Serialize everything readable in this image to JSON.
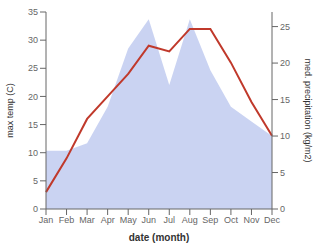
{
  "chart_data": {
    "type": "line",
    "categories": [
      "Jan",
      "Feb",
      "Mar",
      "Apr",
      "May",
      "Jun",
      "Jul",
      "Aug",
      "Sep",
      "Oct",
      "Nov",
      "Dec"
    ],
    "series": [
      {
        "type": "area",
        "color": "#b8c4ee",
        "axis": "y2",
        "values": [
          8,
          8,
          9,
          14,
          22,
          26,
          17,
          26,
          19,
          14,
          12,
          10
        ]
      },
      {
        "type": "line",
        "color": "#c0392b",
        "values": [
          3,
          9,
          16,
          20,
          24,
          29,
          28,
          32,
          32,
          26,
          19,
          13
        ]
      }
    ],
    "xlabel": "date (month)",
    "ylabel": "max temp (C)",
    "y2label": "med. precipitation (kg/m2)",
    "ylim": [
      0,
      35
    ],
    "yticks": [
      0,
      5,
      10,
      15,
      20,
      25,
      30,
      35
    ],
    "y2lim": [
      0,
      27
    ],
    "y2ticks": [
      0,
      5,
      10,
      15,
      20,
      25
    ],
    "grid": false
  }
}
